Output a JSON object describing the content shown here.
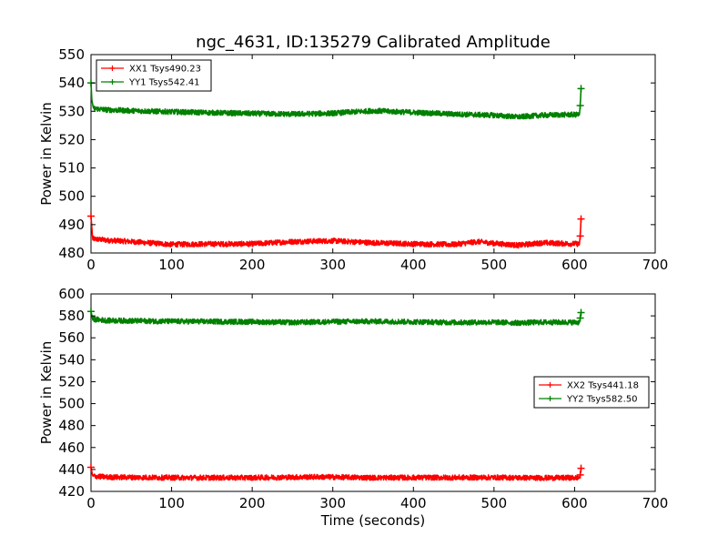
{
  "chart_data": [
    {
      "type": "line",
      "title": "ngc_4631, ID:135279 Calibrated Amplitude",
      "xlabel": "",
      "ylabel": "Power in Kelvin",
      "xlim": [
        0,
        700
      ],
      "ylim": [
        480,
        550
      ],
      "xticks": [
        "0",
        "100",
        "200",
        "300",
        "400",
        "500",
        "600",
        "700"
      ],
      "yticks": [
        "480",
        "490",
        "500",
        "510",
        "520",
        "530",
        "540",
        "550"
      ],
      "legend_position": "top-left",
      "series": [
        {
          "name": "XX1 Tsys490.23",
          "color": "#ff0000",
          "points": [
            [
              0,
              493
            ],
            [
              2,
              485
            ],
            [
              20,
              484.5
            ],
            [
              50,
              484
            ],
            [
              100,
              483
            ],
            [
              150,
              483.2
            ],
            [
              200,
              483.2
            ],
            [
              250,
              484
            ],
            [
              300,
              484.3
            ],
            [
              350,
              483.6
            ],
            [
              400,
              483.2
            ],
            [
              450,
              483
            ],
            [
              480,
              484
            ],
            [
              500,
              483.4
            ],
            [
              530,
              482.7
            ],
            [
              560,
              483.6
            ],
            [
              590,
              483.3
            ],
            [
              606,
              483.2
            ],
            [
              607,
              486
            ],
            [
              608,
              492
            ]
          ]
        },
        {
          "name": "YY1 Tsys542.41",
          "color": "#008000",
          "points": [
            [
              0,
              540
            ],
            [
              1,
              534
            ],
            [
              3,
              531
            ],
            [
              20,
              530.5
            ],
            [
              50,
              530.2
            ],
            [
              100,
              529.8
            ],
            [
              150,
              529.5
            ],
            [
              200,
              529.2
            ],
            [
              250,
              529
            ],
            [
              300,
              529.3
            ],
            [
              350,
              530.2
            ],
            [
              400,
              529.6
            ],
            [
              450,
              529
            ],
            [
              500,
              528.6
            ],
            [
              530,
              528
            ],
            [
              560,
              528.6
            ],
            [
              590,
              528.8
            ],
            [
              606,
              528.8
            ],
            [
              607,
              532
            ],
            [
              608,
              538
            ]
          ]
        }
      ]
    },
    {
      "type": "line",
      "title": "",
      "xlabel": "Time (seconds)",
      "ylabel": "Power in Kelvin",
      "xlim": [
        0,
        700
      ],
      "ylim": [
        420,
        600
      ],
      "xticks": [
        "0",
        "100",
        "200",
        "300",
        "400",
        "500",
        "600",
        "700"
      ],
      "yticks": [
        "420",
        "440",
        "460",
        "480",
        "500",
        "520",
        "540",
        "560",
        "580",
        "600"
      ],
      "legend_position": "center-right",
      "series": [
        {
          "name": "XX2 Tsys441.18",
          "color": "#ff0000",
          "points": [
            [
              0,
              442
            ],
            [
              2,
              434
            ],
            [
              20,
              433
            ],
            [
              100,
              432.5
            ],
            [
              200,
              432.5
            ],
            [
              280,
              433.2
            ],
            [
              350,
              432.5
            ],
            [
              450,
              432.6
            ],
            [
              500,
              432.7
            ],
            [
              550,
              432.3
            ],
            [
              606,
              432.4
            ],
            [
              607,
              435
            ],
            [
              608,
              441
            ]
          ]
        },
        {
          "name": "YY2 Tsys582.50",
          "color": "#008000",
          "points": [
            [
              0,
              584
            ],
            [
              2,
              577
            ],
            [
              20,
              575.8
            ],
            [
              100,
              575
            ],
            [
              200,
              574.6
            ],
            [
              250,
              574
            ],
            [
              300,
              574.7
            ],
            [
              350,
              575
            ],
            [
              400,
              574.6
            ],
            [
              450,
              574
            ],
            [
              500,
              574.2
            ],
            [
              530,
              573.6
            ],
            [
              560,
              574.2
            ],
            [
              606,
              574.1
            ],
            [
              607,
              578
            ],
            [
              608,
              583
            ]
          ]
        }
      ]
    }
  ]
}
